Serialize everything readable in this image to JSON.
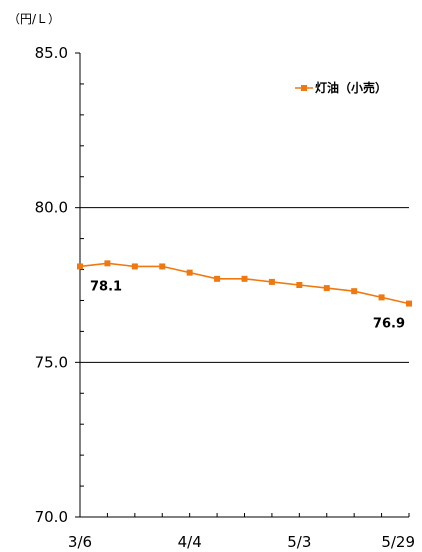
{
  "chart_data": {
    "type": "line",
    "unit_label": "（円/Ｌ）",
    "ylim": [
      70.0,
      85.0
    ],
    "y_ticks": [
      "85.0",
      "80.0",
      "75.0",
      "70.0"
    ],
    "y_tick_values": [
      85.0,
      80.0,
      75.0,
      70.0
    ],
    "gridlines_at": [
      80.0,
      75.0
    ],
    "x_tick_labels": [
      "3/6",
      "4/4",
      "5/3",
      "5/29"
    ],
    "x_tick_indices": [
      0,
      4,
      8,
      12
    ],
    "legend_position": "top-right",
    "series": [
      {
        "name": "灯油（小売）",
        "color": "#F07810",
        "values": [
          78.1,
          78.2,
          78.1,
          78.1,
          77.9,
          77.7,
          77.7,
          77.6,
          77.5,
          77.4,
          77.3,
          77.1,
          76.9
        ]
      }
    ],
    "data_labels": [
      {
        "index": 0,
        "text": "78.1"
      },
      {
        "index": 12,
        "text": "76.9"
      }
    ]
  }
}
